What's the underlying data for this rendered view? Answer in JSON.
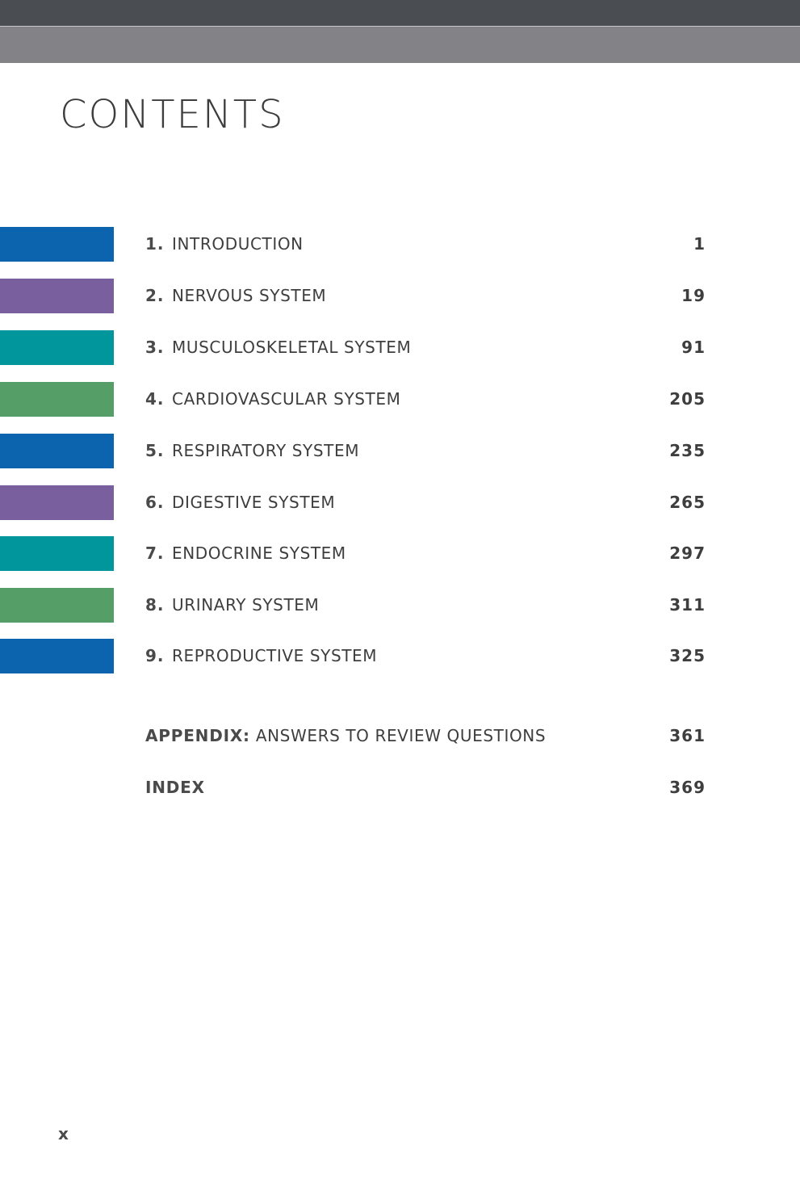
{
  "header": {
    "title": "CONTENTS"
  },
  "chapters": [
    {
      "number": "1.",
      "title": "INTRODUCTION",
      "page": "1",
      "color": "#0b64ad"
    },
    {
      "number": "2.",
      "title": "NERVOUS SYSTEM",
      "page": "19",
      "color": "#7a5f9e"
    },
    {
      "number": "3.",
      "title": "MUSCULOSKELETAL SYSTEM",
      "page": "91",
      "color": "#00969b"
    },
    {
      "number": "4.",
      "title": "CARDIOVASCULAR SYSTEM",
      "page": "205",
      "color": "#569e67"
    },
    {
      "number": "5.",
      "title": "RESPIRATORY SYSTEM",
      "page": "235",
      "color": "#0b64ad"
    },
    {
      "number": "6.",
      "title": "DIGESTIVE SYSTEM",
      "page": "265",
      "color": "#7a5f9e"
    },
    {
      "number": "7.",
      "title": "ENDOCRINE SYSTEM",
      "page": "297",
      "color": "#00969b"
    },
    {
      "number": "8.",
      "title": "URINARY SYSTEM",
      "page": "311",
      "color": "#569e67"
    },
    {
      "number": "9.",
      "title": "REPRODUCTIVE SYSTEM",
      "page": "325",
      "color": "#0b64ad"
    }
  ],
  "back_matter": {
    "appendix": {
      "label": "APPENDIX:",
      "title": "ANSWERS TO REVIEW QUESTIONS",
      "page": "361"
    },
    "index": {
      "label": "INDEX",
      "page": "369"
    }
  },
  "footer": {
    "folio": "x"
  },
  "colors": {
    "top_band": "#4a4d52",
    "second_band": "#838387",
    "text": "#3e3e3e"
  }
}
